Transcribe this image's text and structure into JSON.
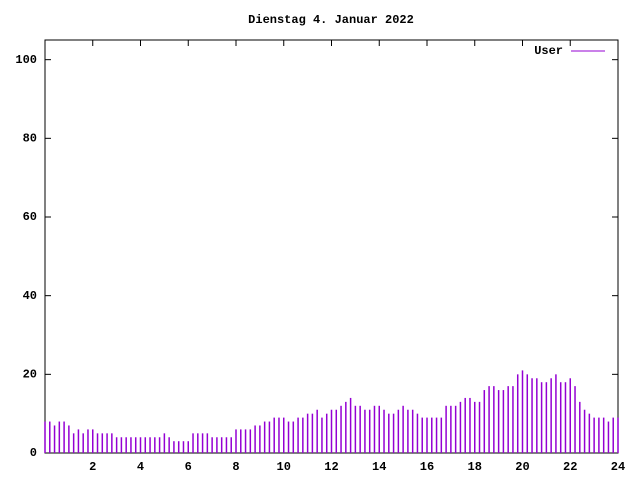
{
  "chart_data": {
    "type": "impulse",
    "title": "Dienstag 4. Januar 2022",
    "x": [
      0,
      0.2,
      0.4,
      0.6,
      0.8,
      1.0,
      1.2,
      1.4,
      1.6,
      1.8,
      2.0,
      2.2,
      2.4,
      2.6,
      2.8,
      3.0,
      3.2,
      3.4,
      3.6,
      3.8,
      4.0,
      4.2,
      4.4,
      4.6,
      4.8,
      5.0,
      5.2,
      5.4,
      5.6,
      5.8,
      6.0,
      6.2,
      6.4,
      6.6,
      6.8,
      7.0,
      7.2,
      7.4,
      7.6,
      7.8,
      8.0,
      8.2,
      8.4,
      8.6,
      8.8,
      9.0,
      9.2,
      9.4,
      9.6,
      9.8,
      10.0,
      10.2,
      10.4,
      10.6,
      10.8,
      11.0,
      11.2,
      11.4,
      11.6,
      11.8,
      12.0,
      12.2,
      12.4,
      12.6,
      12.8,
      13.0,
      13.2,
      13.4,
      13.6,
      13.8,
      14.0,
      14.2,
      14.4,
      14.6,
      14.8,
      15.0,
      15.2,
      15.4,
      15.6,
      15.8,
      16.0,
      16.2,
      16.4,
      16.6,
      16.8,
      17.0,
      17.2,
      17.4,
      17.6,
      17.8,
      18.0,
      18.2,
      18.4,
      18.6,
      18.8,
      19.0,
      19.2,
      19.4,
      19.6,
      19.8,
      20.0,
      20.2,
      20.4,
      20.6,
      20.8,
      21.0,
      21.2,
      21.4,
      21.6,
      21.8,
      22.0,
      22.2,
      22.4,
      22.6,
      22.8,
      23.0,
      23.2,
      23.4,
      23.6,
      23.8,
      24.0
    ],
    "series": [
      {
        "name": "User",
        "color": "#9400d3",
        "values": [
          8,
          8,
          7,
          8,
          8,
          7,
          5,
          6,
          5,
          6,
          6,
          5,
          5,
          5,
          5,
          4,
          4,
          4,
          4,
          4,
          4,
          4,
          4,
          4,
          4,
          5,
          4,
          3,
          3,
          3,
          3,
          5,
          5,
          5,
          5,
          4,
          4,
          4,
          4,
          4,
          6,
          6,
          6,
          6,
          7,
          7,
          8,
          8,
          9,
          9,
          9,
          8,
          8,
          9,
          9,
          10,
          10,
          11,
          9,
          10,
          11,
          11,
          12,
          13,
          14,
          12,
          12,
          11,
          11,
          12,
          12,
          11,
          10,
          10,
          11,
          12,
          11,
          11,
          10,
          9,
          9,
          9,
          9,
          9,
          12,
          12,
          12,
          13,
          14,
          14,
          13,
          13,
          16,
          17,
          17,
          16,
          16,
          17,
          17,
          20,
          21,
          20,
          19,
          19,
          18,
          18,
          19,
          20,
          18,
          18,
          19,
          17,
          13,
          11,
          10,
          9,
          9,
          9,
          8,
          9,
          9
        ]
      }
    ],
    "xlim": [
      0,
      24
    ],
    "xticks": [
      2,
      4,
      6,
      8,
      10,
      12,
      14,
      16,
      18,
      20,
      22,
      24
    ],
    "ylim": [
      0,
      105
    ],
    "yticks": [
      0,
      20,
      40,
      60,
      80,
      100
    ],
    "legend": "top-right"
  }
}
